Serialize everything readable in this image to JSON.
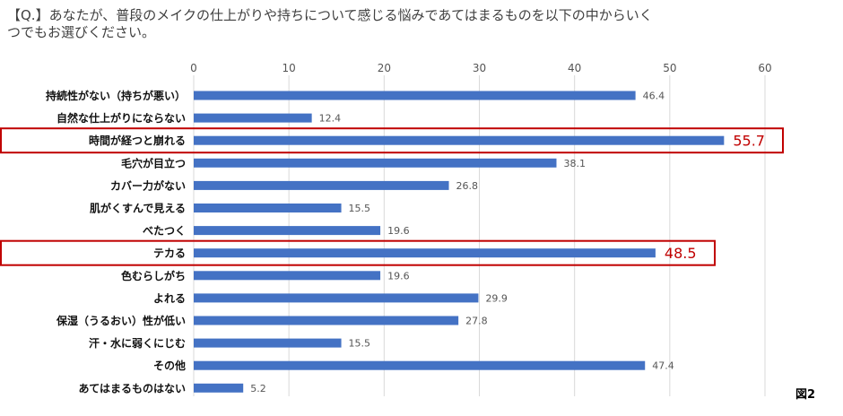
{
  "question": "【Q.】あなたが、普段のメイクの仕上がりや持ちについて感じる悩みであてはまるものを以下の中からいくつでもお選びください。",
  "figure_label": "図2",
  "colors": {
    "bar": "#4472c4",
    "highlight": "#c00000",
    "grid": "#d9d9d9"
  },
  "chart_data": {
    "type": "bar",
    "orientation": "horizontal",
    "title": "",
    "xlabel": "",
    "ylabel": "",
    "xlim": [
      0,
      60
    ],
    "ticks": [
      0,
      10,
      20,
      30,
      40,
      50,
      60
    ],
    "categories": [
      "持続性がない（持ちが悪い）",
      "自然な仕上がりにならない",
      "時間が経つと崩れる",
      "毛穴が目立つ",
      "カバー力がない",
      "肌がくすんで見える",
      "べたつく",
      "テカる",
      "色むらしがち",
      "よれる",
      "保湿（うるおい）性が低い",
      "汗・水に弱くにじむ",
      "その他",
      "あてはまるものはない"
    ],
    "values": [
      46.4,
      12.4,
      55.7,
      38.1,
      26.8,
      15.5,
      19.6,
      48.5,
      19.6,
      29.9,
      27.8,
      15.5,
      47.4,
      5.2
    ],
    "highlighted": [
      "時間が経つと崩れる",
      "テカる"
    ]
  }
}
